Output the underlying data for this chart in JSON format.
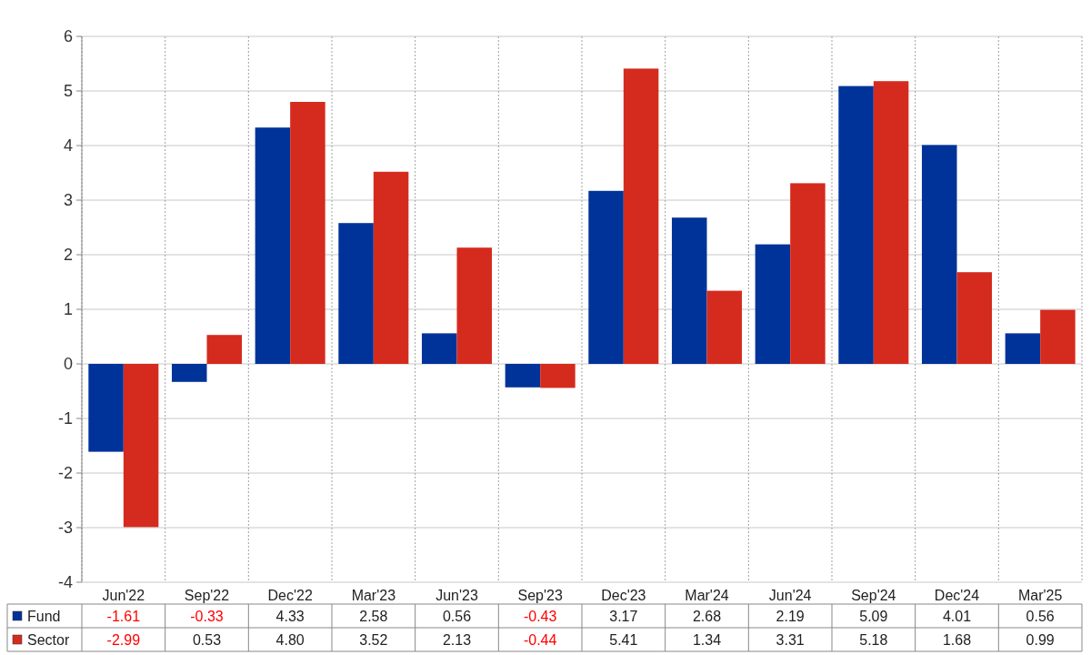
{
  "chart_data": {
    "type": "bar",
    "categories": [
      "Jun'22",
      "Sep'22",
      "Dec'22",
      "Mar'23",
      "Jun'23",
      "Sep'23",
      "Dec'23",
      "Mar'24",
      "Jun'24",
      "Sep'24",
      "Dec'24",
      "Mar'25"
    ],
    "series": [
      {
        "name": "Fund",
        "color": "#003399",
        "values": [
          -1.61,
          -0.33,
          4.33,
          2.58,
          0.56,
          -0.43,
          3.17,
          2.68,
          2.19,
          5.09,
          4.01,
          0.56
        ],
        "value_labels": [
          "-1.61",
          "-0.33",
          "4.33",
          "2.58",
          "0.56",
          "-0.43",
          "3.17",
          "2.68",
          "2.19",
          "5.09",
          "4.01",
          "0.56"
        ]
      },
      {
        "name": "Sector",
        "color": "#d52b1e",
        "values": [
          -2.99,
          0.53,
          4.8,
          3.52,
          2.13,
          -0.44,
          5.41,
          1.34,
          3.31,
          5.18,
          1.68,
          0.99
        ],
        "value_labels": [
          "-2.99",
          "0.53",
          "4.80",
          "3.52",
          "2.13",
          "-0.44",
          "5.41",
          "1.34",
          "3.31",
          "5.18",
          "1.68",
          "0.99"
        ]
      }
    ],
    "ylim": [
      -4,
      6
    ],
    "yticks": [
      -4,
      -3,
      -2,
      -1,
      0,
      1,
      2,
      3,
      4,
      5,
      6
    ],
    "grid": true,
    "legend": "bottom"
  }
}
